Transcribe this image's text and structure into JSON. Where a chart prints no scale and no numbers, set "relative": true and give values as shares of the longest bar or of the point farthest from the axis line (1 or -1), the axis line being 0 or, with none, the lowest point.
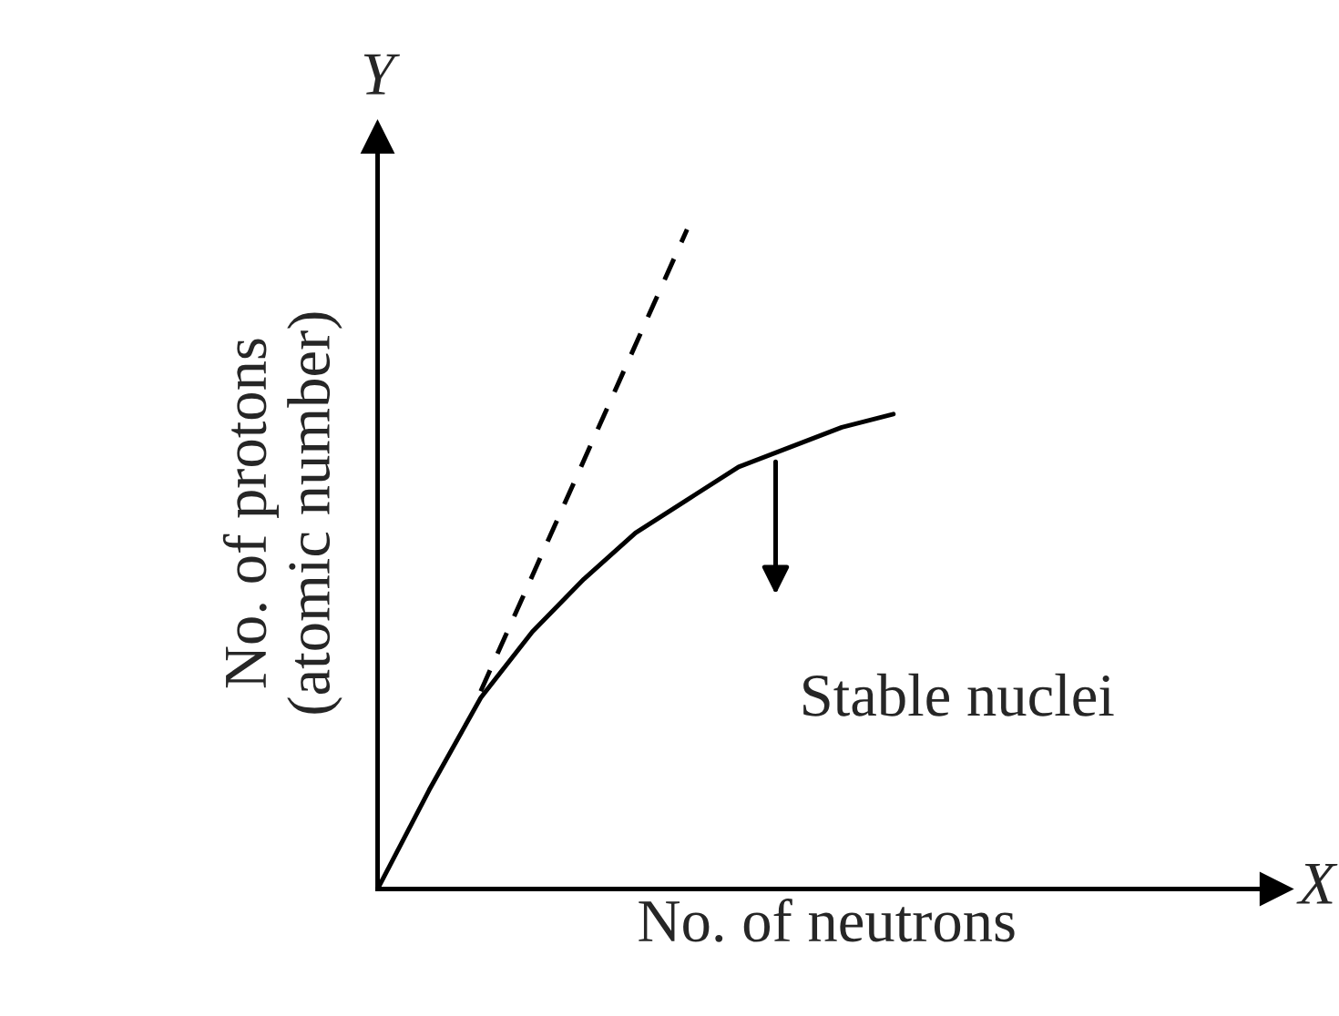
{
  "chart_data": {
    "type": "line",
    "relative": true,
    "xlabel": "No. of neutrons",
    "ylabel": "No. of protons\n(atomic number)",
    "categories": [
      null,
      null,
      null,
      null,
      null,
      null,
      null,
      null,
      null,
      null,
      null
    ],
    "series": [
      {
        "color": "#000000",
        "line_style": "solid",
        "values": [
          0,
          0.15,
          0.29,
          0.39,
          0.47,
          0.54,
          0.59,
          0.64,
          0.67,
          0.7,
          0.72
        ]
      },
      {
        "color": "#000000",
        "line_style": "dashed",
        "values": [
          null,
          null,
          0.3,
          null,
          null,
          null,
          1.0,
          null,
          null,
          null,
          null
        ]
      }
    ],
    "annotations": [
      "Stable nuclei",
      "X",
      "Y"
    ],
    "marker": "none",
    "legend": false
  }
}
